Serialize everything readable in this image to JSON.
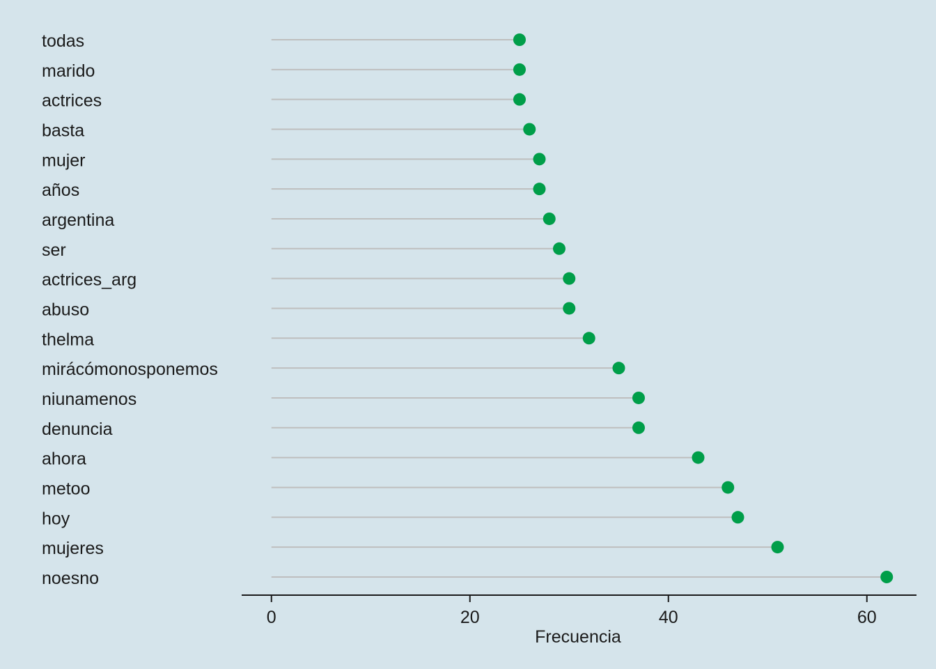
{
  "chart_data": {
    "type": "lollipop",
    "orientation": "horizontal",
    "categories": [
      "todas",
      "marido",
      "actrices",
      "basta",
      "mujer",
      "años",
      "argentina",
      "ser",
      "actrices_arg",
      "abuso",
      "thelma",
      "mirácómonosponemos",
      "niunamenos",
      "denuncia",
      "ahora",
      "metoo",
      "hoy",
      "mujeres",
      "noesno"
    ],
    "values": [
      25,
      25,
      25,
      26,
      27,
      27,
      28,
      29,
      30,
      30,
      32,
      35,
      37,
      37,
      43,
      46,
      47,
      51,
      62
    ],
    "xlabel": "Frecuencia",
    "ylabel": "",
    "title": "",
    "xlim": [
      -3,
      65
    ],
    "xticks": [
      0,
      20,
      40,
      60
    ],
    "grid": false,
    "legend": "none",
    "colors": {
      "point": "#009e49",
      "stem": "#bebebe",
      "background": "#d5e4eb",
      "axis": "#1a1a1a"
    }
  }
}
